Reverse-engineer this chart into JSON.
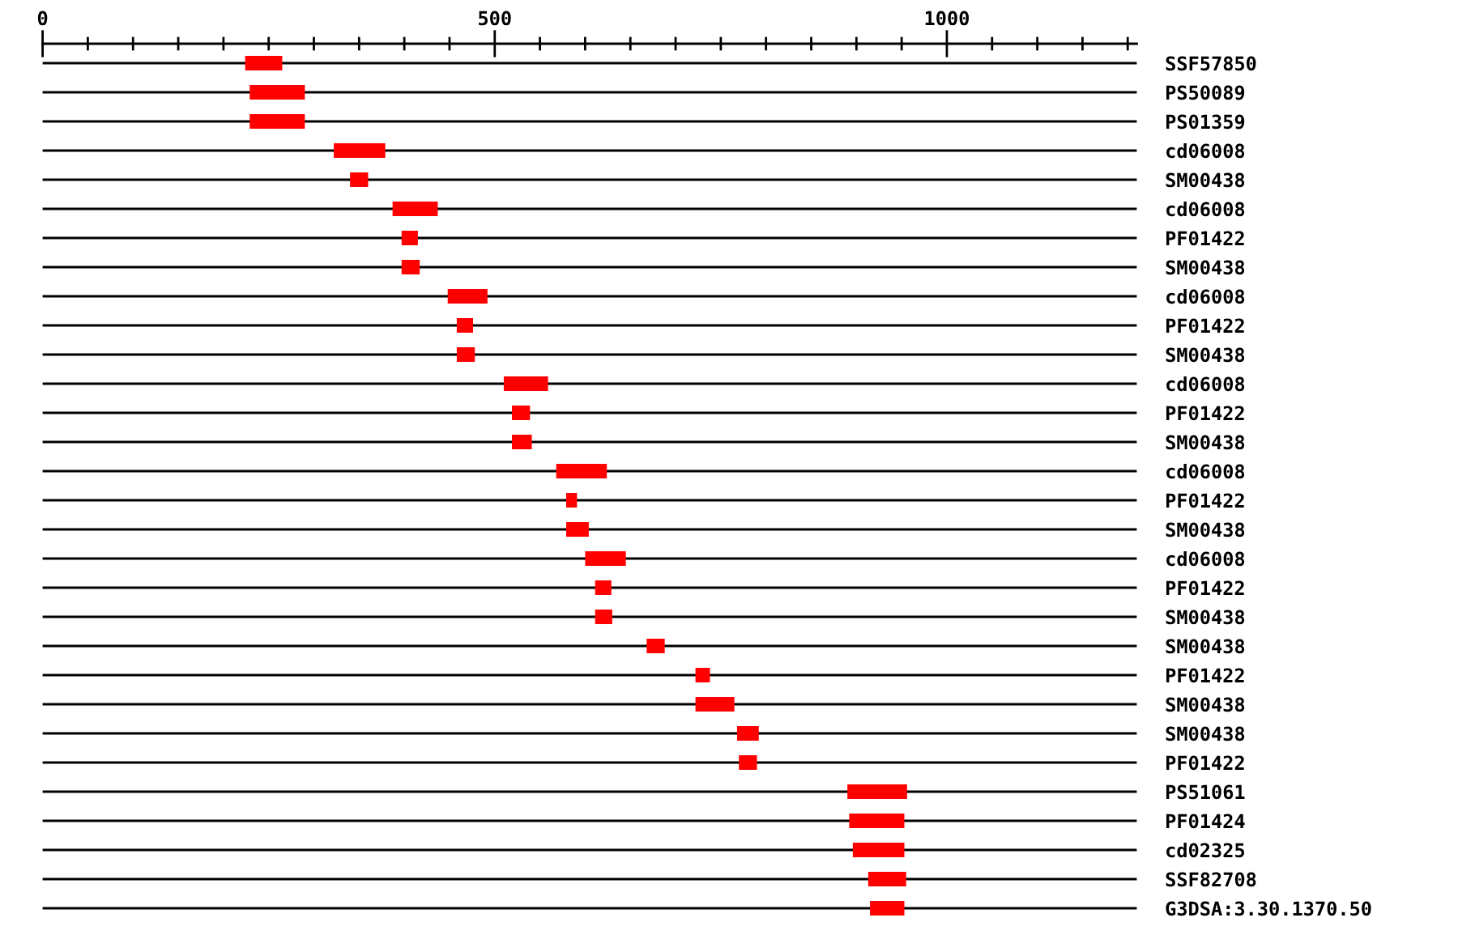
{
  "chart_data": {
    "type": "bar",
    "orientation": "horizontal",
    "categories": [
      "SSF57850",
      "PS50089",
      "PS01359",
      "cd06008",
      "SM00438",
      "cd06008",
      "PF01422",
      "SM00438",
      "cd06008",
      "PF01422",
      "SM00438",
      "cd06008",
      "PF01422",
      "SM00438",
      "cd06008",
      "PF01422",
      "SM00438",
      "cd06008",
      "PF01422",
      "SM00438",
      "SM00438",
      "PF01422",
      "SM00438",
      "SM00438",
      "PF01422",
      "PS51061",
      "PF01424",
      "cd02325",
      "SSF82708",
      "G3DSA:3.30.1370.50"
    ],
    "base": [
      224,
      229,
      229,
      322,
      340,
      387,
      397,
      397,
      448,
      458,
      458,
      510,
      519,
      519,
      568,
      579,
      579,
      600,
      611,
      611,
      668,
      722,
      722,
      768,
      770,
      890,
      892,
      896,
      913,
      915
    ],
    "values": [
      41,
      61,
      61,
      57,
      20,
      50,
      18,
      20,
      44,
      18,
      20,
      49,
      20,
      22,
      56,
      12,
      25,
      45,
      18,
      19,
      20,
      16,
      43,
      24,
      20,
      66,
      61,
      57,
      42,
      38
    ],
    "color": "#ff0000",
    "xlim": [
      0,
      1210
    ],
    "xticks": [
      0,
      {
        "value": 50,
        "label": null
      },
      {
        "value": 100,
        "label": null
      },
      {
        "value": 150,
        "label": null
      },
      {
        "value": 200,
        "label": null
      },
      {
        "value": 250,
        "label": null
      },
      {
        "value": 300,
        "label": null
      },
      {
        "value": 350,
        "label": null
      },
      {
        "value": 400,
        "label": null
      },
      {
        "value": 450,
        "label": null
      },
      500,
      {
        "value": 550,
        "label": null
      },
      {
        "value": 600,
        "label": null
      },
      {
        "value": 650,
        "label": null
      },
      {
        "value": 700,
        "label": null
      },
      {
        "value": 750,
        "label": null
      },
      {
        "value": 800,
        "label": null
      },
      {
        "value": 850,
        "label": null
      },
      {
        "value": 900,
        "label": null
      },
      {
        "value": 950,
        "label": null
      },
      1000,
      {
        "value": 1050,
        "label": null
      },
      {
        "value": 1100,
        "label": null
      },
      {
        "value": 1150,
        "label": null
      },
      {
        "value": 1200,
        "label": null
      }
    ],
    "grid": "y"
  }
}
